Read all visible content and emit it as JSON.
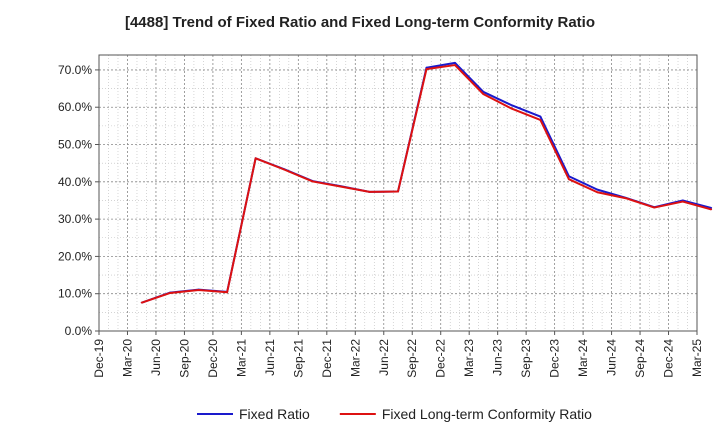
{
  "chart_data": {
    "type": "line",
    "title": "[4488]  Trend of Fixed Ratio and Fixed Long-term Conformity Ratio",
    "xlabel": "",
    "ylabel": "",
    "y_unit": "%",
    "ylim": [
      0,
      74
    ],
    "yticks": [
      0,
      10,
      20,
      30,
      40,
      50,
      60,
      70
    ],
    "ytick_labels": [
      "0.0%",
      "10.0%",
      "20.0%",
      "30.0%",
      "40.0%",
      "50.0%",
      "60.0%",
      "70.0%"
    ],
    "x_tick_labels": [
      "Dec-19",
      "Mar-20",
      "Jun-20",
      "Sep-20",
      "Dec-20",
      "Mar-21",
      "Jun-21",
      "Sep-21",
      "Dec-21",
      "Mar-22",
      "Jun-22",
      "Sep-22",
      "Dec-22",
      "Mar-23",
      "Jun-23",
      "Sep-23",
      "Dec-23",
      "Mar-24",
      "Jun-24",
      "Sep-24",
      "Dec-24",
      "Mar-25"
    ],
    "categories": [
      "Mar-20",
      "Jun-20",
      "Sep-20",
      "Dec-20",
      "Mar-21",
      "Jun-21",
      "Sep-21",
      "Dec-21",
      "Mar-22",
      "Jun-22",
      "Sep-22",
      "Dec-22",
      "Mar-23",
      "Jun-23",
      "Sep-23",
      "Dec-23",
      "Mar-24",
      "Jun-24",
      "Sep-24",
      "Dec-24",
      "Mar-25"
    ],
    "x_data_start": "Mar-20",
    "grid": true,
    "legend_position": "bottom",
    "series": [
      {
        "name": "Fixed Ratio",
        "color": "#1a1acc",
        "start_category": "Mar-20",
        "values": [
          7.6,
          10.3,
          11.1,
          10.5,
          46.3,
          43.4,
          40.2,
          38.8,
          37.3,
          37.4,
          70.6,
          71.9,
          64.1,
          60.5,
          57.5,
          41.5,
          37.9,
          35.7,
          33.2,
          35.0,
          33.0
        ]
      },
      {
        "name": "Fixed Long-term Conformity Ratio",
        "color": "#dd1111",
        "start_category": "Mar-20",
        "values": [
          7.6,
          10.2,
          11.0,
          10.4,
          46.3,
          43.3,
          40.1,
          38.7,
          37.3,
          37.4,
          70.2,
          71.3,
          63.5,
          59.6,
          56.6,
          40.7,
          37.2,
          35.6,
          33.1,
          34.7,
          32.6
        ]
      }
    ]
  }
}
